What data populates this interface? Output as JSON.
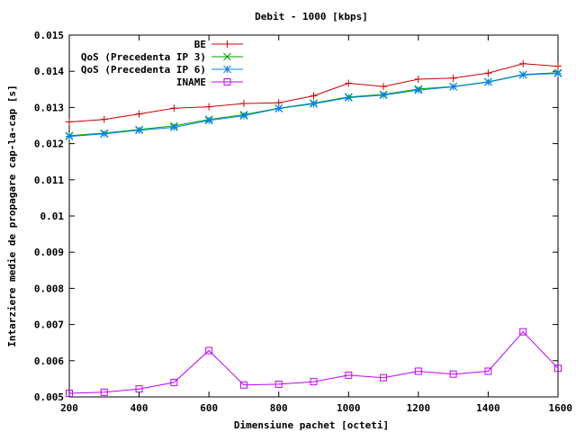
{
  "chart_data": {
    "type": "line",
    "title": "Debit - 1000 [kbps]",
    "xlabel": "Dimensiune pachet [octeti]",
    "ylabel": "Intarziere medie de propagare cap-la-cap [s]",
    "xlim": [
      200,
      1600
    ],
    "ylim": [
      0.005,
      0.015
    ],
    "xticks": [
      200,
      400,
      600,
      800,
      1000,
      1200,
      1400,
      1600
    ],
    "xtick_labels": [
      "200",
      "400",
      "600",
      "800",
      "1000",
      "1200",
      "1400",
      "1600"
    ],
    "yticks": [
      0.005,
      0.006,
      0.007,
      0.008,
      0.009,
      0.01,
      0.011,
      0.012,
      0.013,
      0.014,
      0.015
    ],
    "ytick_labels": [
      "0.005",
      "0.006",
      "0.007",
      "0.008",
      "0.009",
      "0.01",
      "0.011",
      "0.012",
      "0.013",
      "0.014",
      "0.015"
    ],
    "grid": false,
    "legend_position": "top-left",
    "x": [
      200,
      300,
      400,
      500,
      600,
      700,
      800,
      900,
      1000,
      1100,
      1200,
      1300,
      1400,
      1500,
      1600
    ],
    "series": [
      {
        "name": "BE",
        "color": "#cc0000",
        "marker": "plus",
        "values": [
          0.0126,
          0.01267,
          0.01282,
          0.01298,
          0.01302,
          0.01311,
          0.01313,
          0.01332,
          0.01367,
          0.01358,
          0.01378,
          0.01381,
          0.01395,
          0.01421,
          0.01414
        ]
      },
      {
        "name": "QoS (Precedenta IP 3)",
        "color": "#00a000",
        "marker": "cross",
        "values": [
          0.01222,
          0.01229,
          0.01239,
          0.01249,
          0.01267,
          0.0128,
          0.01298,
          0.01312,
          0.01329,
          0.01336,
          0.01351,
          0.01358,
          0.01371,
          0.01391,
          0.01396
        ]
      },
      {
        "name": "QoS (Precedenta IP 6)",
        "color": "#0080ff",
        "marker": "asterisk",
        "values": [
          0.0122,
          0.01227,
          0.01237,
          0.01245,
          0.01264,
          0.01277,
          0.01297,
          0.0131,
          0.01327,
          0.01334,
          0.01348,
          0.01357,
          0.0137,
          0.0139,
          0.01394
        ]
      },
      {
        "name": "INAME",
        "color": "#c000ff",
        "marker": "square",
        "values": [
          0.0051,
          0.00513,
          0.00522,
          0.0054,
          0.00628,
          0.00533,
          0.00535,
          0.00542,
          0.0056,
          0.00553,
          0.00571,
          0.00563,
          0.00571,
          0.0068,
          0.00579
        ]
      }
    ]
  }
}
